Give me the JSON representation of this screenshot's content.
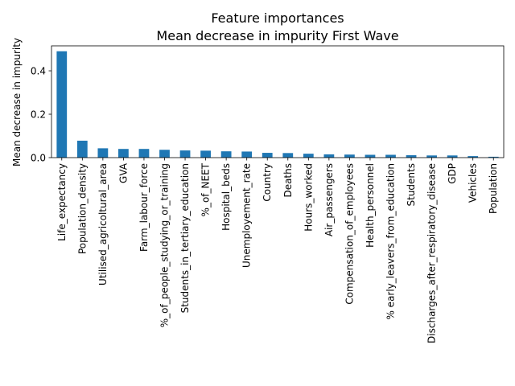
{
  "chart_data": {
    "type": "bar",
    "title": "Feature importances",
    "subtitle": "Mean decrease in impurity First Wave",
    "xlabel": "",
    "ylabel": "Mean decrease in impurity",
    "ylim": [
      0,
      0.515
    ],
    "yticks": [
      0.0,
      0.2,
      0.4
    ],
    "ytick_labels": [
      "0.0",
      "0.2",
      "0.4"
    ],
    "grid": false,
    "bar_color": "#1f77b4",
    "categories": [
      "Life_expectancy",
      "Population_density",
      "Utilised_agricoltural_area",
      "GVA",
      "Farm_labour_force",
      "%_of_people_studying_or_training",
      "Students_in_tertiary_education",
      "%_of_NEET",
      "Hospital_beds",
      "Unemployement_rate",
      "Country",
      "Deaths",
      "Hours_worked",
      "Air_passengers",
      "Compensation_of_employees",
      "Health_personnel",
      "% early_leavers_from_education",
      "Students",
      "Discharges_after_respiratory_disease",
      "GDP",
      "Vehicles",
      "Population"
    ],
    "values": [
      0.49,
      0.078,
      0.043,
      0.04,
      0.04,
      0.036,
      0.033,
      0.032,
      0.029,
      0.028,
      0.022,
      0.021,
      0.018,
      0.015,
      0.014,
      0.013,
      0.013,
      0.011,
      0.01,
      0.01,
      0.007,
      0.004
    ]
  }
}
